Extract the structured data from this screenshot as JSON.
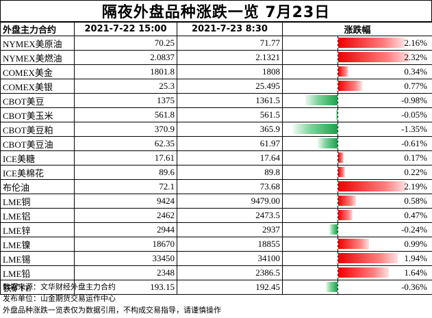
{
  "title": "隔夜外盘品种涨跌一览 7月23日",
  "headers": {
    "name": "外盘主力合约",
    "prev": "2021-7-22 15:00",
    "curr": "2021-7-23 8:30",
    "change": "涨跌幅"
  },
  "colors": {
    "up": "#ee0000",
    "down": "#1aa34a"
  },
  "chart_data": {
    "type": "table",
    "columns": [
      "外盘主力合约",
      "2021-7-22 15:00",
      "2021-7-23 8:30",
      "涨跌幅"
    ],
    "rows": [
      {
        "name": "NYMEX美原油",
        "prev": "70.25",
        "curr": "71.77",
        "pct": 2.16,
        "pct_label": "2.16%"
      },
      {
        "name": "NYMEX美燃油",
        "prev": "2.0837",
        "curr": "2.1321",
        "pct": 2.32,
        "pct_label": "2.32%"
      },
      {
        "name": "COMEX美金",
        "prev": "1801.8",
        "curr": "1808",
        "pct": 0.34,
        "pct_label": "0.34%"
      },
      {
        "name": "COMEX美银",
        "prev": "25.3",
        "curr": "25.495",
        "pct": 0.77,
        "pct_label": "0.77%"
      },
      {
        "name": "CBOT美豆",
        "prev": "1375",
        "curr": "1361.5",
        "pct": -0.98,
        "pct_label": "-0.98%"
      },
      {
        "name": "CBOT美玉米",
        "prev": "561.8",
        "curr": "561.5",
        "pct": -0.05,
        "pct_label": "-0.05%"
      },
      {
        "name": "CBOT美豆粕",
        "prev": "370.9",
        "curr": "365.9",
        "pct": -1.35,
        "pct_label": "-1.35%"
      },
      {
        "name": "CBOT美豆油",
        "prev": "62.35",
        "curr": "61.97",
        "pct": -0.61,
        "pct_label": "-0.61%"
      },
      {
        "name": "ICE美糖",
        "prev": "17.61",
        "curr": "17.64",
        "pct": 0.17,
        "pct_label": "0.17%"
      },
      {
        "name": "ICE美棉花",
        "prev": "89.6",
        "curr": "89.8",
        "pct": 0.22,
        "pct_label": "0.22%"
      },
      {
        "name": "布伦油",
        "prev": "72.1",
        "curr": "73.68",
        "pct": 2.19,
        "pct_label": "2.19%"
      },
      {
        "name": "LME铜",
        "prev": "9424",
        "curr": "9479.00",
        "pct": 0.58,
        "pct_label": "0.58%"
      },
      {
        "name": "LME铝",
        "prev": "2462",
        "curr": "2473.5",
        "pct": 0.47,
        "pct_label": "0.47%"
      },
      {
        "name": "LME锌",
        "prev": "2944",
        "curr": "2937",
        "pct": -0.24,
        "pct_label": "-0.24%"
      },
      {
        "name": "LME镍",
        "prev": "18670",
        "curr": "18855",
        "pct": 0.99,
        "pct_label": "0.99%"
      },
      {
        "name": "LME锡",
        "prev": "33450",
        "curr": "34100",
        "pct": 1.94,
        "pct_label": "1.94%"
      },
      {
        "name": "LME铅",
        "prev": "2348",
        "curr": "2386.5",
        "pct": 1.64,
        "pct_label": "1.64%"
      },
      {
        "name": "铁矿FE",
        "prev": "193.15",
        "curr": "192.45",
        "pct": -0.36,
        "pct_label": "-0.36%"
      }
    ]
  },
  "footer": {
    "source": "数据来源：文华财经外盘主力合约",
    "publisher": "发布单位：山金期货交易运作中心",
    "disclaimer": "外盘品种涨跌一览表仅为数据引用，不构成交易指导，请谨慎操作"
  }
}
